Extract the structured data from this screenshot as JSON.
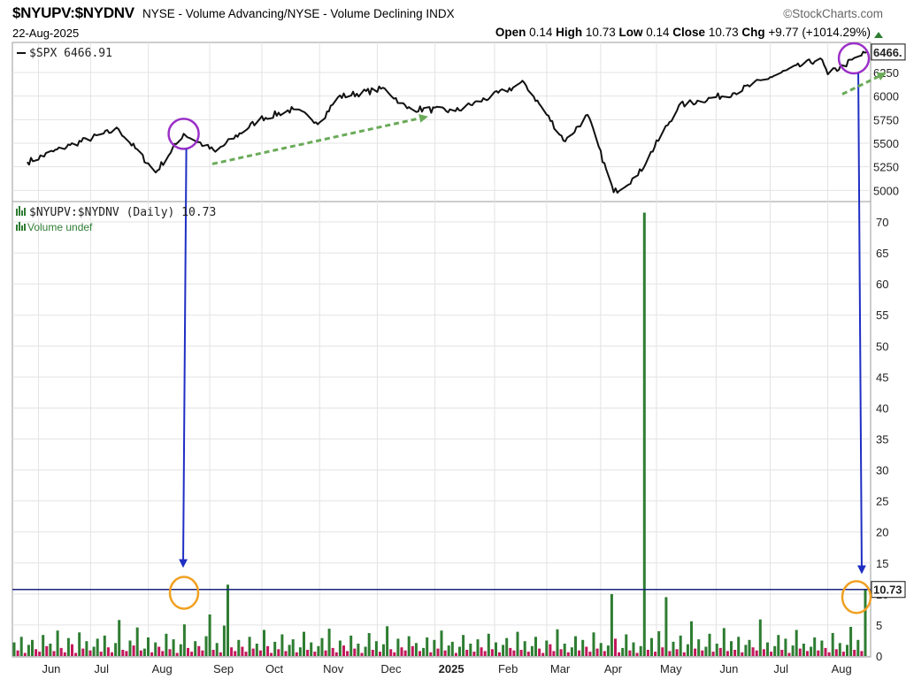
{
  "header": {
    "symbol": "$NYUPV:$NYDNV",
    "description": "NYSE - Volume Advancing/NYSE - Volume Declining INDX",
    "date": "22-Aug-2025",
    "brand": "©StockCharts.com",
    "open_label": "Open",
    "open": "0.14",
    "high_label": "High",
    "high": "10.73",
    "low_label": "Low",
    "low": "0.14",
    "close_label": "Close",
    "close": "10.73",
    "chg_label": "Chg",
    "chg": "+9.77 (+1014.29%)"
  },
  "chart_data": [
    {
      "type": "line",
      "legend": "$SPX 6466.91",
      "last_value_label": "6466.",
      "y_ticks": [
        "6250",
        "6000",
        "5750",
        "5500",
        "5250",
        "5000"
      ],
      "ylim": [
        4900,
        6550
      ],
      "x": [
        "2024-05-28",
        "2024-06-20",
        "2024-07-16",
        "2024-08-05",
        "2024-08-20",
        "2024-09-06",
        "2024-09-30",
        "2024-10-18",
        "2024-11-01",
        "2024-11-11",
        "2024-12-06",
        "2024-12-18",
        "2025-01-13",
        "2025-02-19",
        "2025-03-13",
        "2025-03-25",
        "2025-04-08",
        "2025-04-21",
        "2025-05-13",
        "2025-06-11",
        "2025-07-01",
        "2025-07-28",
        "2025-08-01",
        "2025-08-22"
      ],
      "values": [
        5300,
        5480,
        5650,
        5190,
        5600,
        5410,
        5760,
        5860,
        5720,
        5990,
        6080,
        5870,
        5840,
        6140,
        5520,
        5800,
        4980,
        5160,
        5900,
        6030,
        6200,
        6400,
        6230,
        6466.91
      ],
      "annotations": [
        "circle 2024-08-20",
        "circle 2025-08-22",
        "dashed green arrow 2024-09 to 2024-12",
        "dashed green arrow 2025-08"
      ]
    },
    {
      "type": "bar",
      "legend": "$NYUPV:$NYDNV (Daily) 10.73",
      "legend2": "Volume undef",
      "last_value_label": "10.73",
      "y_ticks": [
        "70",
        "65",
        "60",
        "55",
        "50",
        "45",
        "40",
        "35",
        "30",
        "25",
        "20",
        "15",
        "10",
        "5",
        "0"
      ],
      "ylim": [
        0,
        73
      ],
      "reference_line": 10.73,
      "highlight_values": [
        {
          "date": "2024-08-22",
          "value": 11.5
        },
        {
          "date": "2025-04-09",
          "value": 71.5
        },
        {
          "date": "2025-03-14",
          "value": 10.0
        },
        {
          "date": "2025-04-24",
          "value": 9.5
        },
        {
          "date": "2025-08-22",
          "value": 10.73
        }
      ],
      "values": [
        2.2,
        0.9,
        3.1,
        0.5,
        1.8,
        2.6,
        1.1,
        0.7,
        3.4,
        1.6,
        2.0,
        0.8,
        4.1,
        1.3,
        0.6,
        2.9,
        1.9,
        0.5,
        3.8,
        1.2,
        2.4,
        0.9,
        1.5,
        2.8,
        0.7,
        3.3,
        1.4,
        0.6,
        2.1,
        5.8,
        1.0,
        0.8,
        2.5,
        1.7,
        4.6,
        0.9,
        1.2,
        3.0,
        0.6,
        2.2,
        1.5,
        0.8,
        3.6,
        1.1,
        2.7,
        0.5,
        1.9,
        5.1,
        1.3,
        0.7,
        2.4,
        1.6,
        0.9,
        3.2,
        6.7,
        1.0,
        2.1,
        0.6,
        4.9,
        11.5,
        1.4,
        0.8,
        2.6,
        1.5,
        0.7,
        3.1,
        1.2,
        2.0,
        0.9,
        4.2,
        1.6,
        0.5,
        2.3,
        1.1,
        3.5,
        0.8,
        1.8,
        2.7,
        0.6,
        1.4,
        3.9,
        1.0,
        2.2,
        0.7,
        1.6,
        2.9,
        0.9,
        4.4,
        1.3,
        0.6,
        2.5,
        1.7,
        0.8,
        3.3,
        1.2,
        2.0,
        0.5,
        1.5,
        3.7,
        1.0,
        2.4,
        0.7,
        1.9,
        4.8,
        1.1,
        0.6,
        2.8,
        1.4,
        0.9,
        3.2,
        1.6,
        2.1,
        0.8,
        1.3,
        3.0,
        0.6,
        2.6,
        1.2,
        4.1,
        0.9,
        1.7,
        2.3,
        0.5,
        1.5,
        3.4,
        1.0,
        2.0,
        0.7,
        2.7,
        1.4,
        0.8,
        3.6,
        1.1,
        2.2,
        0.6,
        1.8,
        2.9,
        1.3,
        0.9,
        3.9,
        1.0,
        2.4,
        0.7,
        1.6,
        3.1,
        1.2,
        0.5,
        2.5,
        1.9,
        0.8,
        4.3,
        1.1,
        2.0,
        0.6,
        1.4,
        3.2,
        0.9,
        2.6,
        1.5,
        0.7,
        3.8,
        1.2,
        2.1,
        0.8,
        1.7,
        10.0,
        2.8,
        0.6,
        1.3,
        3.5,
        0.9,
        2.2,
        0.5,
        1.6,
        71.5,
        1.0,
        2.9,
        0.7,
        4.0,
        1.4,
        9.5,
        0.8,
        2.3,
        1.1,
        3.3,
        0.6,
        1.9,
        5.6,
        1.2,
        2.7,
        0.9,
        1.5,
        3.6,
        0.7,
        2.0,
        1.3,
        4.5,
        0.8,
        2.4,
        1.0,
        3.1,
        0.6,
        1.8,
        2.6,
        1.4,
        0.9,
        5.9,
        1.1,
        2.2,
        0.7,
        1.6,
        3.4,
        1.0,
        2.8,
        0.5,
        1.7,
        4.2,
        1.2,
        2.0,
        0.8,
        1.5,
        3.0,
        0.9,
        2.5,
        1.3,
        0.6,
        3.7,
        1.1,
        2.1,
        0.7,
        1.8,
        4.7,
        1.0,
        2.6,
        0.8,
        10.73
      ],
      "series_colors": {
        "up": "#2e7d32",
        "down": "#c2185b"
      }
    }
  ],
  "x_axis": {
    "labels": [
      "Jun",
      "Jul",
      "Aug",
      "Sep",
      "Oct",
      "Nov",
      "Dec",
      "2025",
      "Feb",
      "Mar",
      "Apr",
      "May",
      "Jun",
      "Jul",
      "Aug"
    ],
    "bold_label": "2025"
  },
  "colors": {
    "line": "#111111",
    "up_bar": "#2e7d32",
    "down_bar": "#c2185b",
    "arrow_blue": "#1f2fc4",
    "circle_purple": "#9b30c8",
    "circle_orange": "#f0a020",
    "dashed_green": "#6aaa58",
    "ref_line": "#1a237e",
    "grid": "#e3e3e3"
  }
}
